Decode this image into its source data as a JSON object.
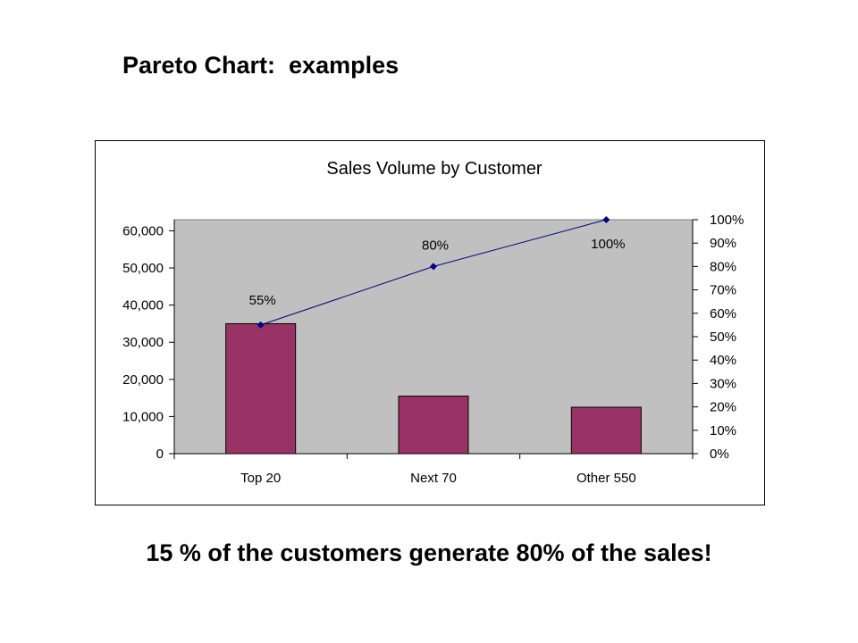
{
  "slide": {
    "title": "Pareto Chart:  examples",
    "footer": "15 % of the customers generate 80% of the sales!"
  },
  "chart_data": {
    "type": "bar",
    "title": "Sales Volume by Customer",
    "categories": [
      "Top 20",
      "Next 70",
      "Other 550"
    ],
    "series": [
      {
        "type": "bar",
        "values": [
          35000,
          15500,
          12500
        ],
        "color": "#993366"
      },
      {
        "type": "line",
        "axis": "secondary",
        "values": [
          55,
          80,
          100
        ],
        "labels": [
          "55%",
          "80%",
          "100%"
        ],
        "color": "#000080"
      }
    ],
    "y_axis": {
      "ylim": [
        0,
        63000
      ],
      "ticks": [
        0,
        10000,
        20000,
        30000,
        40000,
        50000,
        60000
      ],
      "tick_labels": [
        "0",
        "10,000",
        "20,000",
        "30,000",
        "40,000",
        "50,000",
        "60,000"
      ]
    },
    "y2_axis": {
      "ylim": [
        0,
        100
      ],
      "ticks": [
        0,
        10,
        20,
        30,
        40,
        50,
        60,
        70,
        80,
        90,
        100
      ],
      "tick_labels": [
        "0%",
        "10%",
        "20%",
        "30%",
        "40%",
        "50%",
        "60%",
        "70%",
        "80%",
        "90%",
        "100%"
      ]
    },
    "plot_background": "#c0c0c0",
    "grid": false,
    "legend": "none"
  }
}
